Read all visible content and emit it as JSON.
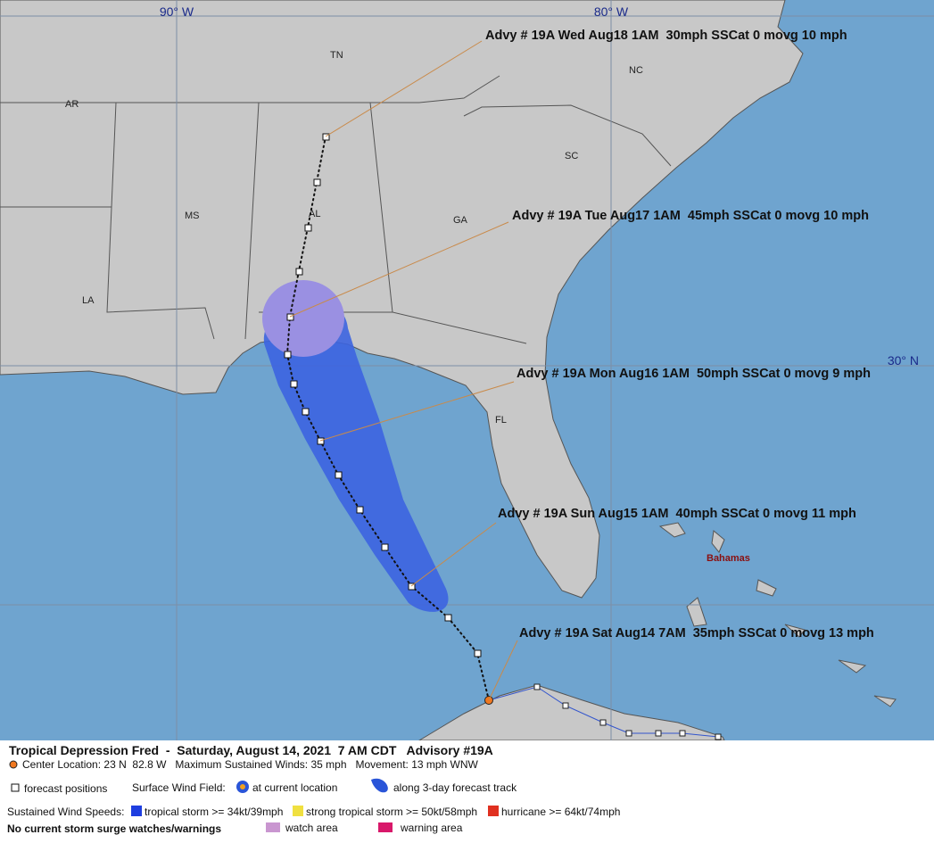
{
  "map": {
    "longitude_labels": [
      "90° W",
      "80° W"
    ],
    "latitude_labels": [
      "30° N"
    ],
    "state_labels": [
      "AR",
      "TN",
      "NC",
      "MS",
      "AL",
      "GA",
      "SC",
      "LA",
      "FL"
    ],
    "place_labels": [
      "Bahamas"
    ],
    "advisories": [
      "Advy # 19A Wed Aug18 1AM  30mph SSCat 0 movg 10 mph",
      "Advy # 19A Tue Aug17 1AM  45mph SSCat 0 movg 10 mph",
      "Advy # 19A Mon Aug16 1AM  50mph SSCat 0 movg 9 mph",
      "Advy # 19A Sun Aug15 1AM  40mph SSCat 0 movg 11 mph",
      "Advy # 19A Sat Aug14 7AM  35mph SSCat 0 movg 13 mph"
    ]
  },
  "legend": {
    "title": "Tropical Depression Fred  -  Saturday, August 14, 2021  7 AM CDT   Advisory #19A",
    "center_info": "Center Location: 23 N  82.8 W   Maximum Sustained Winds: 35 mph   Movement: 13 mph WNW",
    "forecast_positions": "forecast positions",
    "surface_wind_field": "Surface Wind Field:",
    "at_current_location": "at current location",
    "along_track": "along 3-day forecast track",
    "sustained_wind_speeds": "Sustained Wind Speeds:",
    "tropical_storm": "tropical storm >= 34kt/39mph",
    "strong_tropical_storm": "strong tropical storm >= 50kt/58mph",
    "hurricane": "hurricane >= 64kt/74mph",
    "surge_note": "No current storm surge watches/warnings",
    "watch_area": "watch area",
    "warning_area": "warning area"
  }
}
